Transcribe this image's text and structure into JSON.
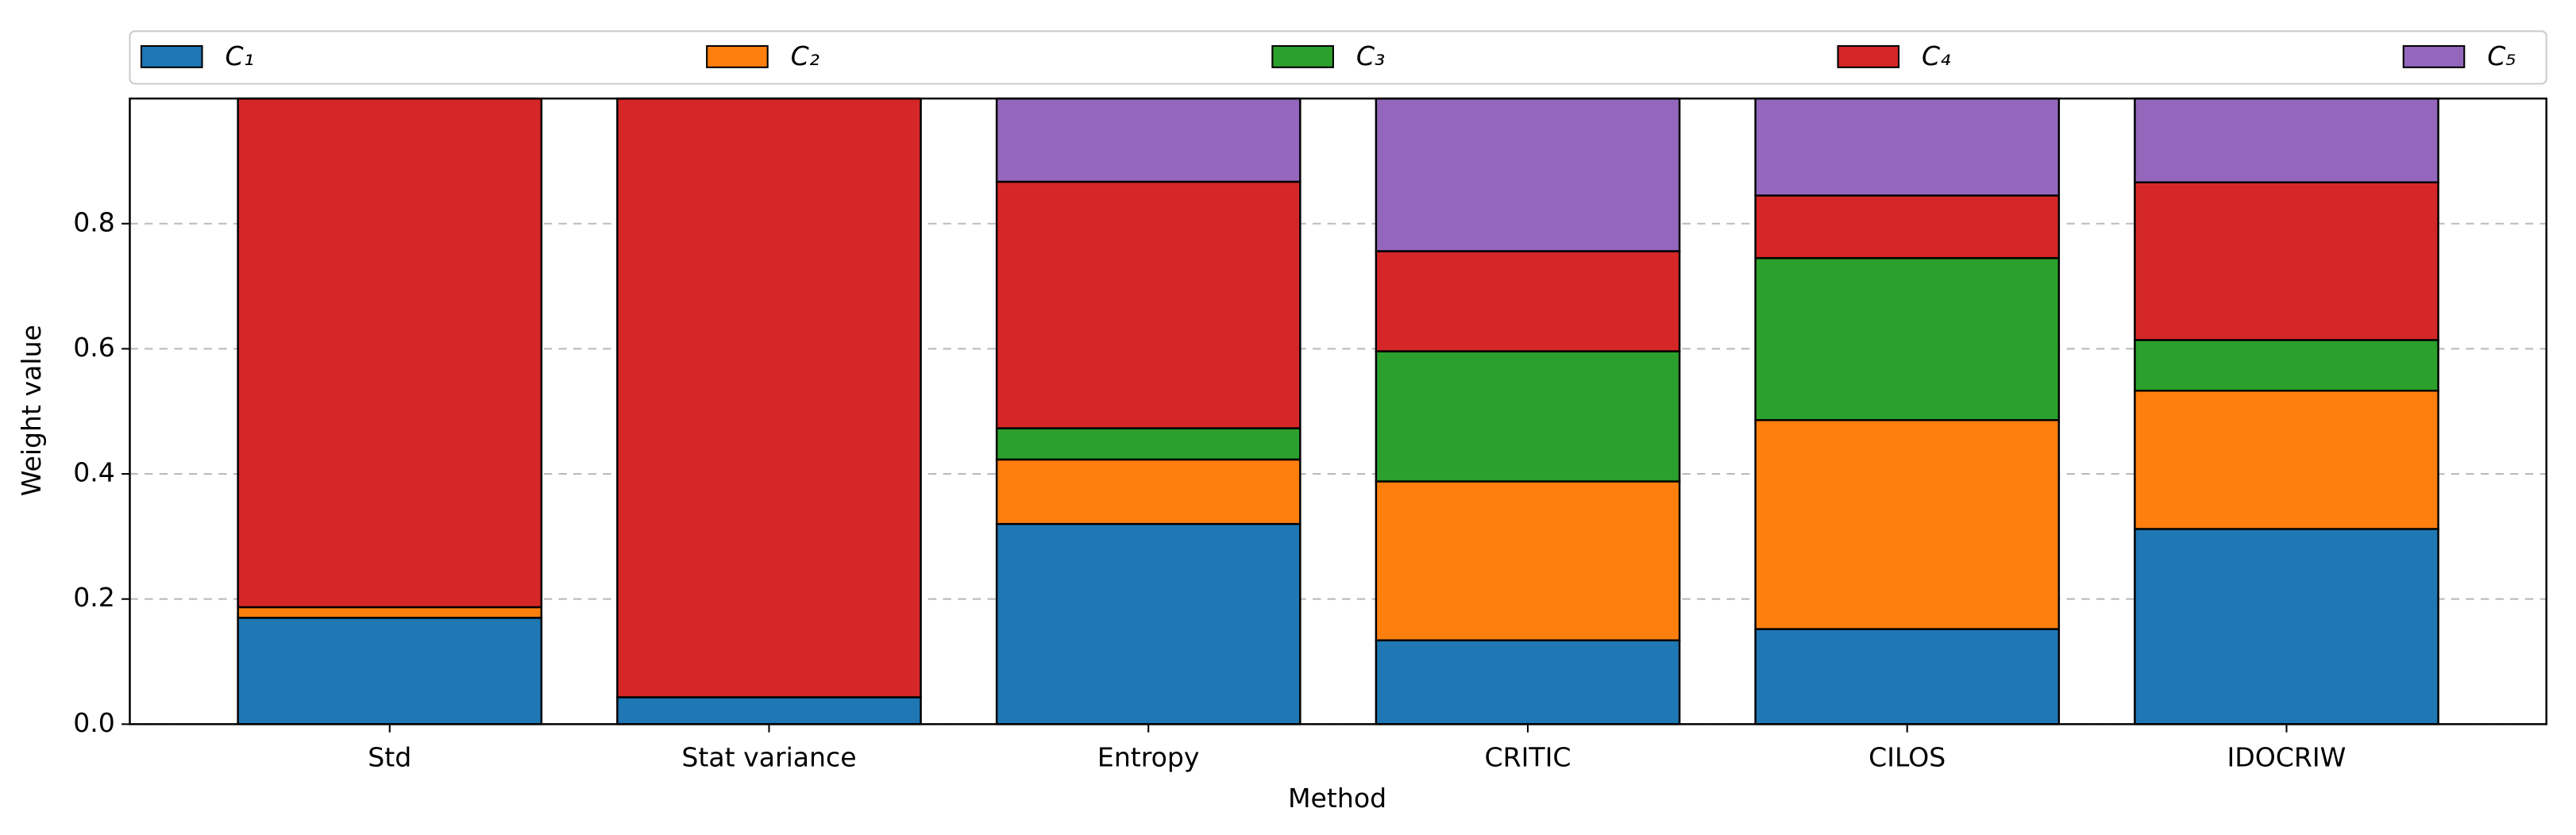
{
  "chart_data": {
    "type": "stacked_bar",
    "x_label": "Method",
    "y_label": "Weight value",
    "categories": [
      "Std",
      "Stat variance",
      "Entropy",
      "CRITIC",
      "CILOS",
      "IDOCRIW"
    ],
    "series": [
      {
        "name": "C₁",
        "color": "#1f77b4",
        "values": [
          0.17,
          0.043,
          0.32,
          0.134,
          0.152,
          0.312
        ]
      },
      {
        "name": "C₂",
        "color": "#ff7f0e",
        "values": [
          0.017,
          0,
          0.103,
          0.254,
          0.334,
          0.221
        ]
      },
      {
        "name": "C₃",
        "color": "#2ca02c",
        "values": [
          0,
          0,
          0.05,
          0.208,
          0.259,
          0.081
        ]
      },
      {
        "name": "C₄",
        "color": "#d62728",
        "values": [
          0.813,
          0.957,
          0.394,
          0.16,
          0.1,
          0.252
        ]
      },
      {
        "name": "C₅",
        "color": "#9467bd",
        "values": [
          0,
          0,
          0.133,
          0.244,
          0.155,
          0.134
        ]
      }
    ],
    "ylim": [
      0,
      1
    ],
    "yticks": [
      0.0,
      0.2,
      0.4,
      0.6,
      0.8
    ],
    "grid": true,
    "legend": "top"
  }
}
